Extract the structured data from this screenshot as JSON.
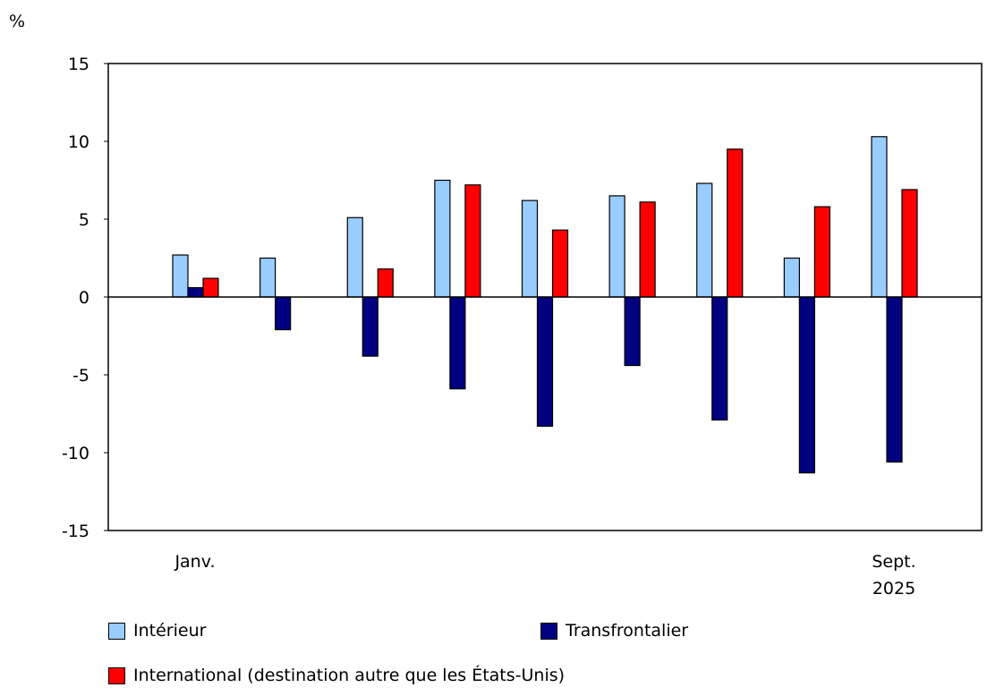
{
  "chart_data": {
    "type": "bar",
    "ylabel": "%",
    "ylim": [
      -15,
      15
    ],
    "yticks": [
      15,
      10,
      5,
      0,
      -5,
      -10,
      -15
    ],
    "categories": [
      "Janv.",
      "",
      "",
      "",
      "",
      "",
      "",
      "",
      "Sept."
    ],
    "year_label": "2025",
    "grid": false,
    "legend_position": "bottom",
    "series": [
      {
        "name": "Intérieur",
        "color": "#99ccff",
        "values": [
          2.7,
          2.5,
          5.1,
          7.5,
          6.2,
          6.5,
          7.3,
          2.5,
          10.3
        ]
      },
      {
        "name": "Transfrontalier",
        "color": "#000080",
        "values": [
          0.6,
          -2.1,
          -3.8,
          -5.9,
          -8.3,
          -4.4,
          -7.9,
          -11.3,
          -10.6
        ]
      },
      {
        "name": "International (destination autre que les États-Unis)",
        "color": "#ff0000",
        "values": [
          1.2,
          0.0,
          1.8,
          7.2,
          4.3,
          6.1,
          9.5,
          5.8,
          6.9
        ]
      }
    ]
  }
}
